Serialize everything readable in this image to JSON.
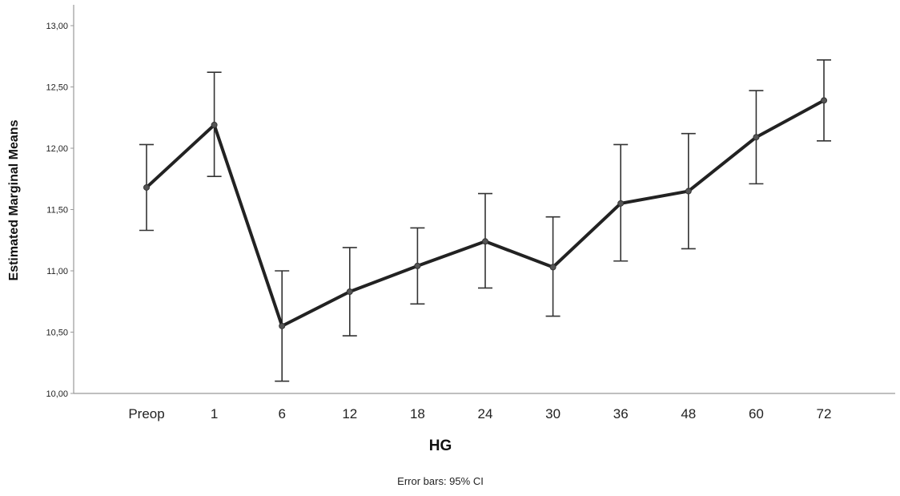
{
  "chart_data": {
    "type": "line",
    "title": "",
    "xlabel": "HG",
    "ylabel": "Estimated Marginal Means",
    "footnote": "Error bars: 95% CI",
    "categories": [
      "Preop",
      "1",
      "6",
      "12",
      "18",
      "24",
      "30",
      "36",
      "48",
      "60",
      "72"
    ],
    "y_ticks": [
      "10,00",
      "10,50",
      "11,00",
      "11,50",
      "12,00",
      "12,50",
      "13,00"
    ],
    "ylim": [
      10.0,
      13.0
    ],
    "series": [
      {
        "values": [
          11.68,
          12.19,
          10.55,
          10.83,
          11.04,
          11.24,
          11.03,
          11.55,
          11.65,
          12.09,
          12.39
        ],
        "ci_lower": [
          11.33,
          11.77,
          10.1,
          10.47,
          10.73,
          10.86,
          10.63,
          11.08,
          11.18,
          11.71,
          12.06
        ],
        "ci_upper": [
          12.03,
          12.62,
          11.0,
          11.19,
          11.35,
          11.63,
          11.44,
          12.03,
          12.12,
          12.47,
          12.72
        ]
      }
    ],
    "grid": false,
    "legend": "none",
    "line_color": "#222222",
    "errorbar_color": "#333333"
  }
}
